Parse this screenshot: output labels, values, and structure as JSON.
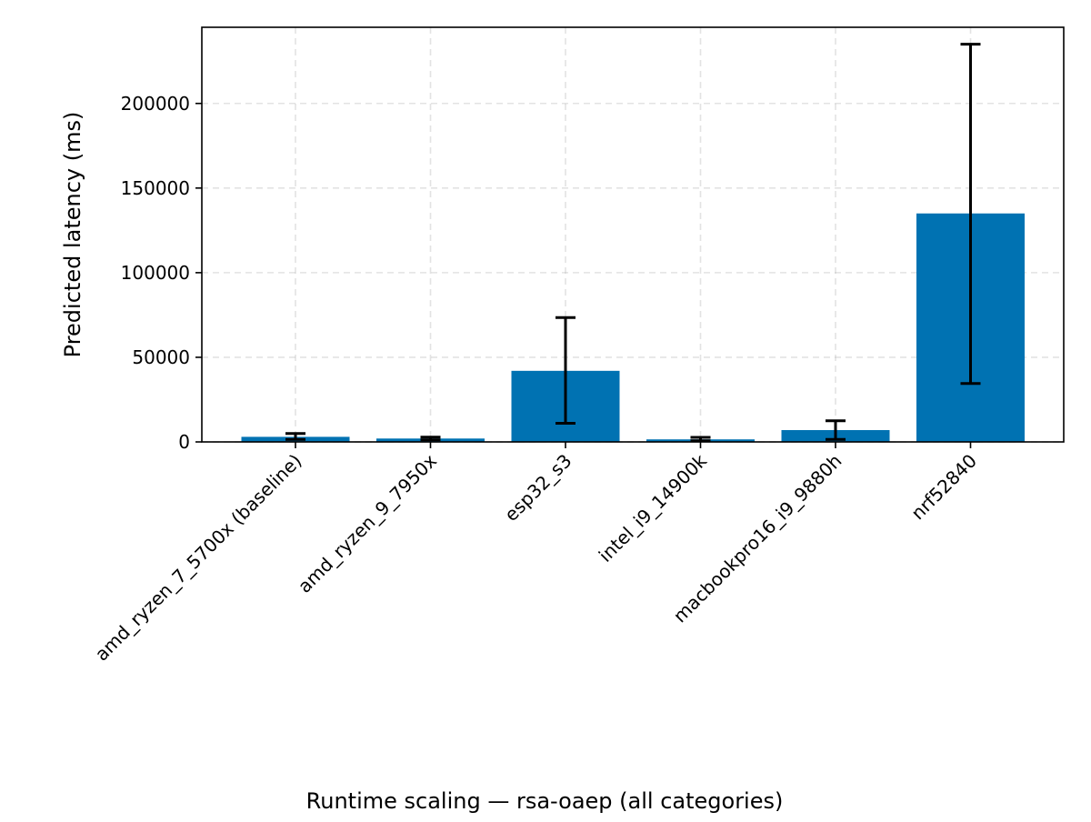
{
  "chart_data": {
    "type": "bar",
    "title": "",
    "caption": "Runtime scaling — rsa-oaep (all categories)",
    "xlabel": "",
    "ylabel": "Predicted latency (ms)",
    "ylim": [
      0,
      245000
    ],
    "yticks": [
      0,
      50000,
      100000,
      150000,
      200000
    ],
    "ytick_labels": [
      "0",
      "50000",
      "100000",
      "150000",
      "200000"
    ],
    "grid": true,
    "legend": "none",
    "colors": {
      "bar": "#0072b2",
      "error_bar": "#000000"
    },
    "categories": [
      "amd_ryzen_7_5700x (baseline)",
      "amd_ryzen_9_7950x",
      "esp32_s3",
      "intel_i9_14900k",
      "macbookpro16_i9_9880h",
      "nrf52840"
    ],
    "values": [
      3000,
      2000,
      42000,
      1500,
      7000,
      135000
    ],
    "error_low": [
      1500,
      1200,
      11000,
      700,
      1500,
      34500
    ],
    "error_high": [
      5000,
      2800,
      73500,
      2700,
      12500,
      235000
    ]
  }
}
